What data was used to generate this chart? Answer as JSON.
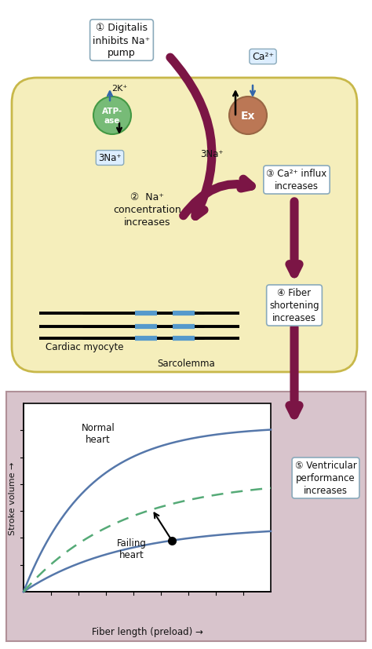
{
  "fig_width": 4.74,
  "fig_height": 8.28,
  "dpi": 100,
  "bg_color": "#ffffff",
  "cell_bg": "#f5eebb",
  "cell_border": "#c8b84a",
  "lower_bg": "#d8c4cc",
  "lower_border": "#b09098",
  "arrow_main_color": "#7b1545",
  "arrow_blue_color": "#3366aa",
  "box_border_color": "#8aaabb",
  "box_bg_color": "#ddeeff",
  "atpase_color": "#77bb77",
  "atpase_border": "#449944",
  "exchanger_color": "#bb7755",
  "exchanger_border": "#996644",
  "heart_blue_color": "#5577aa",
  "heart_dashed_color": "#55aa77",
  "text_color": "#111111",
  "step1_lines": [
    "① Digitalis",
    "inhibits Na⁺",
    "pump"
  ],
  "step2_lines": [
    "②  Na⁺",
    "concentration",
    "increases"
  ],
  "step3_lines": [
    "③ Ca²⁺ influx",
    "increases"
  ],
  "step4_lines": [
    "④ Fiber",
    "shortening",
    "increases"
  ],
  "step5_lines": [
    "⑤ Ventricular",
    "performance",
    "increases"
  ],
  "label_2k": "2K⁺",
  "label_3na_left": "3Na⁺",
  "label_3na_right": "3Na⁺",
  "label_ca2": "Ca²⁺",
  "label_atpase": "ATP-\nase",
  "label_ex": "Ex",
  "label_cardiac": "Cardiac myocyte",
  "label_sarcolemma": "Sarcolemma",
  "label_normal": "Normal\nheart",
  "label_failing": "Failing\nheart",
  "xlabel": "Fiber length (preload) →",
  "ylabel": "Stroke volume →"
}
